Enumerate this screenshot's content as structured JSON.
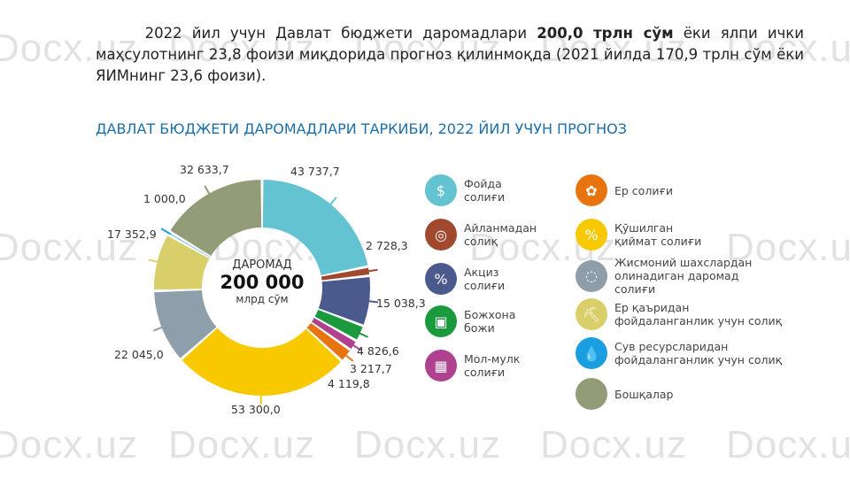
{
  "watermark": "Docx.uz",
  "intro": {
    "part1": "2022 йил учун Давлат бюджети даромадлари ",
    "bold": "200,0 трлн сўм",
    "part2": " ёки ялпи ички маҳсулотнинг 23,8 фоизи миқдорида прогноз қилинмоқда (2021 йилда 170,9 трлн сўм ёки ЯИМнинг 23,6 фоизи)."
  },
  "chart_data": {
    "type": "pie",
    "title": "ДАВЛАТ БЮДЖЕТИ ДАРОМАДЛАРИ ТАРКИБИ, 2022 ЙИЛ УЧУН ПРОГНОЗ",
    "center": {
      "line1": "ДАРОМАД",
      "total": "200 000",
      "unit": "млрд сўм"
    },
    "slices": [
      {
        "name": "Фойда солиғи",
        "value": 43737.7,
        "label": "43 737,7",
        "color": "#63c3d1",
        "icon": "hand-coins-icon"
      },
      {
        "name": "Айланмадан солиқ",
        "value": 2728.3,
        "label": "2 728,3",
        "color": "#a0492f",
        "icon": "coins-icon"
      },
      {
        "name": "Акциз солиғи",
        "value": 15038.3,
        "label": "15 038,3",
        "color": "#4a5a8c",
        "icon": "percent-doc-icon"
      },
      {
        "name": "Божхона божи",
        "value": 4826.6,
        "label": "4 826,6",
        "color": "#1a9a3c",
        "icon": "cart-box-icon"
      },
      {
        "name": "Мол-мулк солиғи",
        "value": 3217.7,
        "label": "3 217,7",
        "color": "#b0418f",
        "icon": "building-icon"
      },
      {
        "name": "Ер солиғи",
        "value": 4119.8,
        "label": "4 119,8",
        "color": "#e8740f",
        "icon": "land-plant-icon"
      },
      {
        "name": "Қўшилган қиймат солиғи",
        "value": 53300.0,
        "label": "53 300,0",
        "color": "#f8c800",
        "icon": "cart-percent-icon"
      },
      {
        "name": "Жисмоний шахслардан олинадиган даромад солиғи",
        "value": 22045.0,
        "label": "22 045,0",
        "color": "#8e9eab",
        "icon": "hand-money-icon"
      },
      {
        "name": "Ер қаъридан фойдаланганлик учун солиқ",
        "value": 17352.9,
        "label": "17 352,9",
        "color": "#d9cf6a",
        "icon": "pickaxe-icon"
      },
      {
        "name": "Сув ресурсларидан фойдаланганлик учун солиқ",
        "value": 1000.0,
        "label": "1 000,0",
        "color": "#1b9ee0",
        "icon": "water-drop-icon"
      },
      {
        "name": "Бошқалар",
        "value": 32633.7,
        "label": "32 633,7",
        "color": "#939c78",
        "icon": "circle-icon"
      }
    ]
  },
  "legend": [
    {
      "text": "Фойда\nсолиғи",
      "glyph": "$"
    },
    {
      "text": "Айланмадан\nсолиқ",
      "glyph": "◎"
    },
    {
      "text": "Акциз\nсолиғи",
      "glyph": "%"
    },
    {
      "text": "Божхона\nбожи",
      "glyph": "▣"
    },
    {
      "text": "Мол-мулк\nсолиғи",
      "glyph": "▦"
    },
    {
      "text": "Ер солиғи",
      "glyph": "✿"
    },
    {
      "text": "Қўшилган\nқиймат солиғи",
      "glyph": "%"
    },
    {
      "text": "Жисмоний шахслардан\nолинадиган даромад\nсолиғи",
      "glyph": "◌"
    },
    {
      "text": "Ер қаъридан\nфойдаланганлик учун солиқ",
      "glyph": "⛏"
    },
    {
      "text": "Сув ресурсларидан\nфойдаланганлик учун солиқ",
      "glyph": "💧"
    },
    {
      "text": "Бошқалар",
      "glyph": ""
    }
  ]
}
